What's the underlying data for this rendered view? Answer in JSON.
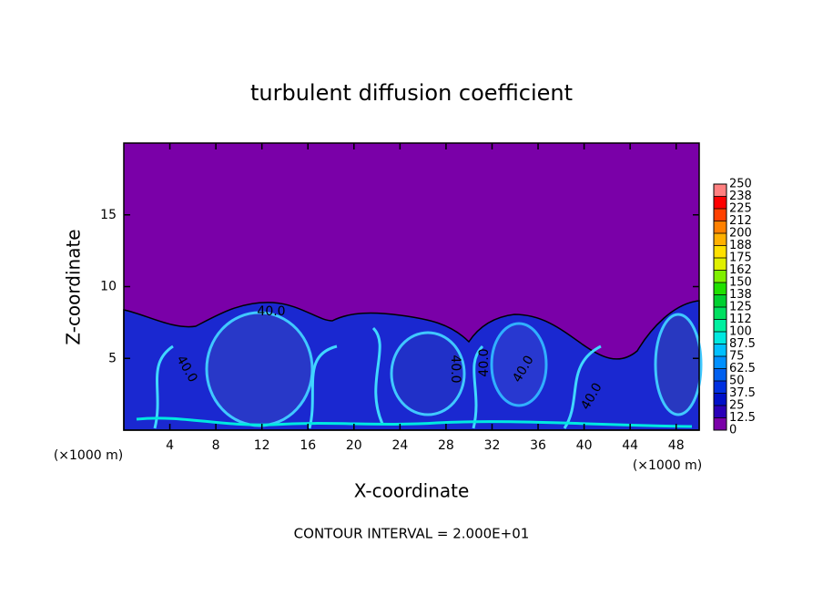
{
  "chart_data": {
    "type": "contour",
    "title": "turbulent diffusion coefficient",
    "x_label": "X-coordinate",
    "y_label": "Z-coordinate",
    "x_unit": "(×1000 m)",
    "xlim": [
      0,
      50
    ],
    "xticks": [
      4,
      8,
      12,
      16,
      20,
      24,
      28,
      32,
      36,
      40,
      44,
      48
    ],
    "ylim": [
      0,
      20
    ],
    "yticks": [
      5,
      10,
      15
    ],
    "colorbar": {
      "levels": [
        0,
        12.5,
        25,
        37.5,
        50,
        62.5,
        75,
        87.5,
        100,
        112,
        125,
        138,
        150,
        162,
        175,
        188,
        200,
        212,
        225,
        238,
        250
      ],
      "colors": [
        "#7a00a8",
        "#2a00b8",
        "#0010c8",
        "#0030e0",
        "#0060f0",
        "#0090ff",
        "#00c0ff",
        "#00e8e0",
        "#00f0a0",
        "#00e060",
        "#00d030",
        "#20e000",
        "#80f000",
        "#e0f000",
        "#ffe000",
        "#ffb000",
        "#ff8000",
        "#ff4000",
        "#ff0000",
        "#ff8080"
      ]
    },
    "contour_labels": [
      "40.0",
      "40.0",
      "40.0",
      "40.0",
      "40.0",
      "40.0"
    ],
    "footer": "CONTOUR INTERVAL = 2.000E+01"
  }
}
